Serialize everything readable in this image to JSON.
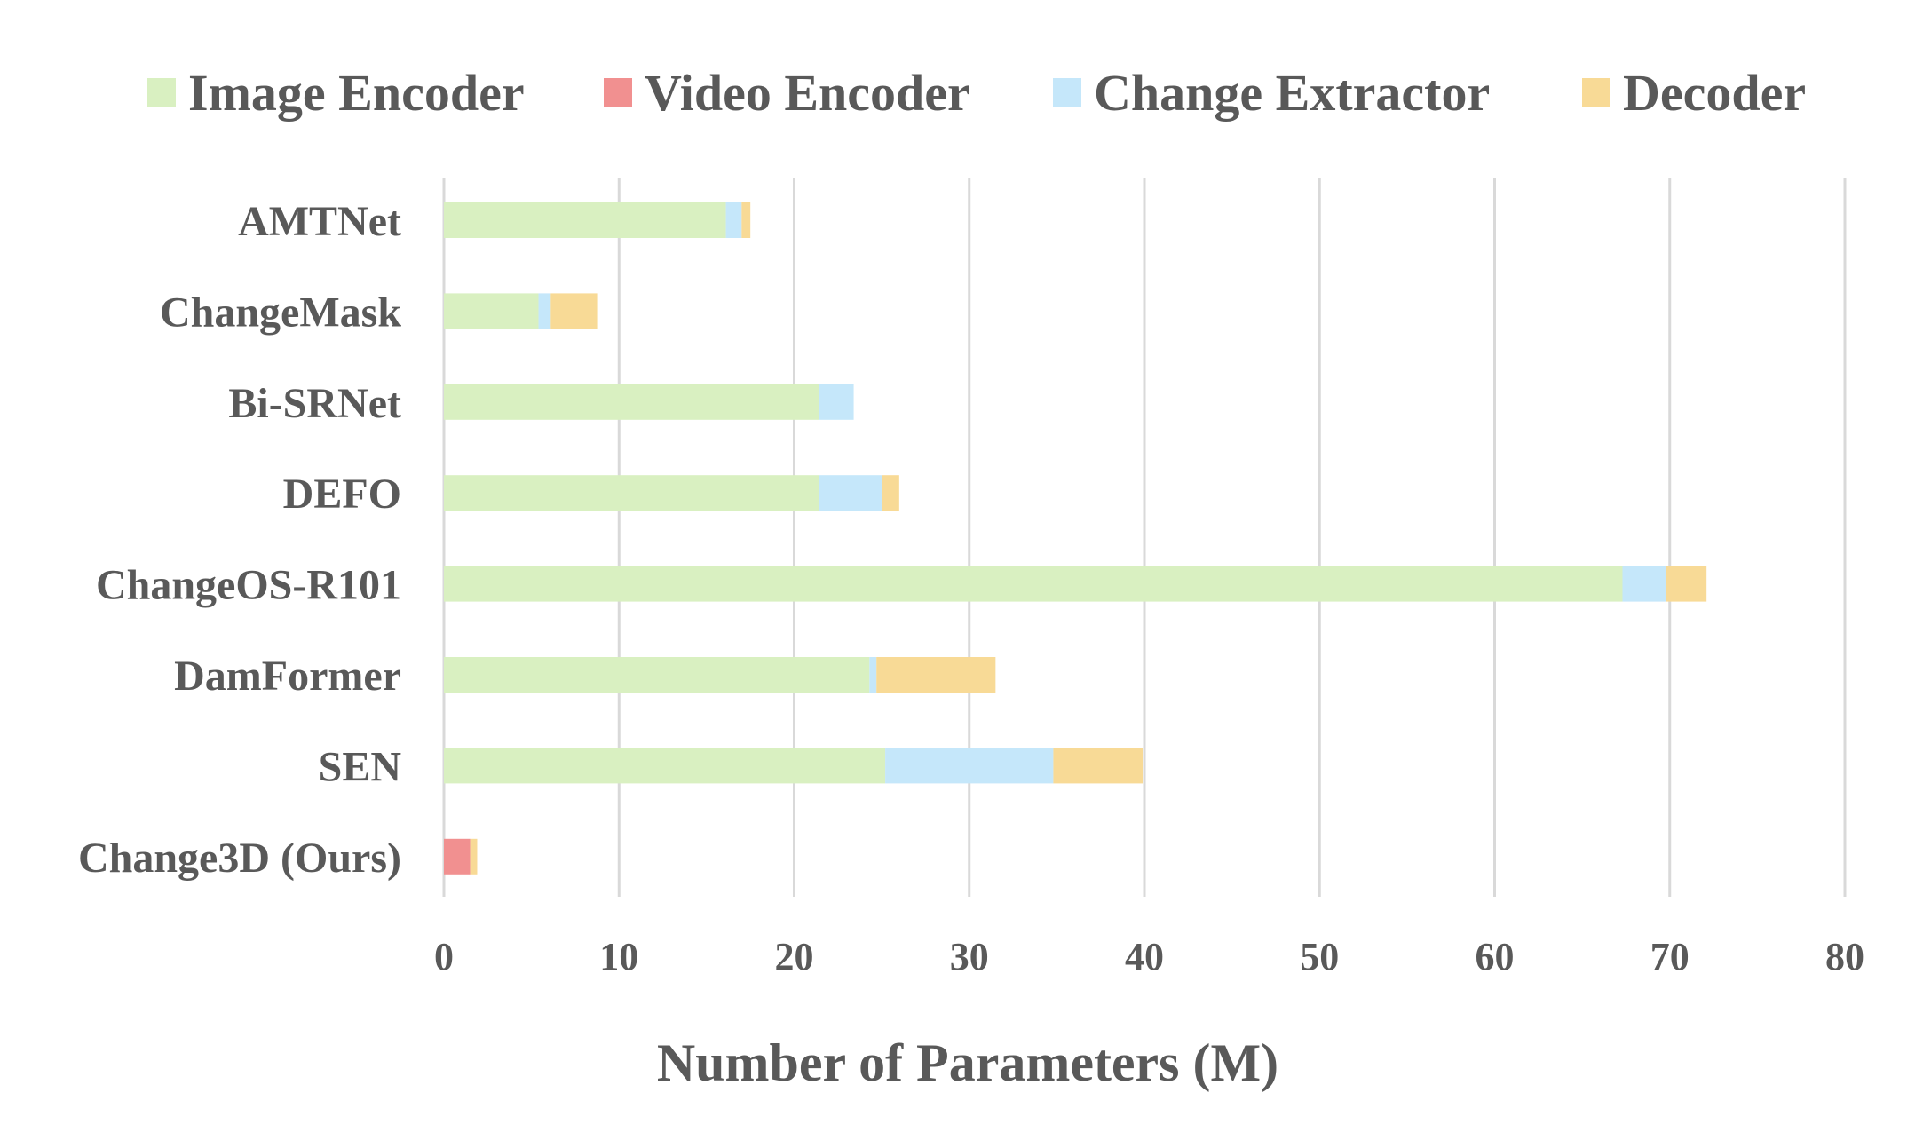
{
  "chart_data": {
    "type": "bar",
    "orientation": "horizontal",
    "stacked": true,
    "title": "",
    "xlabel": "Number of Parameters (M)",
    "ylabel": "",
    "xlim": [
      0,
      80
    ],
    "xticks": [
      "0",
      "10",
      "20",
      "30",
      "40",
      "50",
      "60",
      "70",
      "80"
    ],
    "grid": "vertical",
    "legend_position": "top",
    "categories": [
      "AMTNet",
      "ChangeMask",
      "Bi-SRNet",
      "DEFO",
      "ChangeOS-R101",
      "DamFormer",
      "SEN",
      "Change3D (Ours)"
    ],
    "series": [
      {
        "name": "Image Encoder",
        "color": "#d9f0c1",
        "values": [
          16.1,
          5.4,
          21.4,
          21.4,
          67.3,
          24.3,
          25.2,
          0.0
        ]
      },
      {
        "name": "Video Encoder",
        "color": "#f19090",
        "values": [
          0.0,
          0.0,
          0.0,
          0.0,
          0.0,
          0.0,
          0.0,
          1.5
        ]
      },
      {
        "name": "Change Extractor",
        "color": "#c5e7fa",
        "values": [
          0.9,
          0.7,
          2.0,
          3.6,
          2.5,
          0.4,
          9.6,
          0.0
        ]
      },
      {
        "name": "Decoder",
        "color": "#f8da96",
        "values": [
          0.5,
          2.7,
          0.0,
          1.0,
          2.3,
          6.8,
          5.1,
          0.4
        ]
      }
    ]
  }
}
